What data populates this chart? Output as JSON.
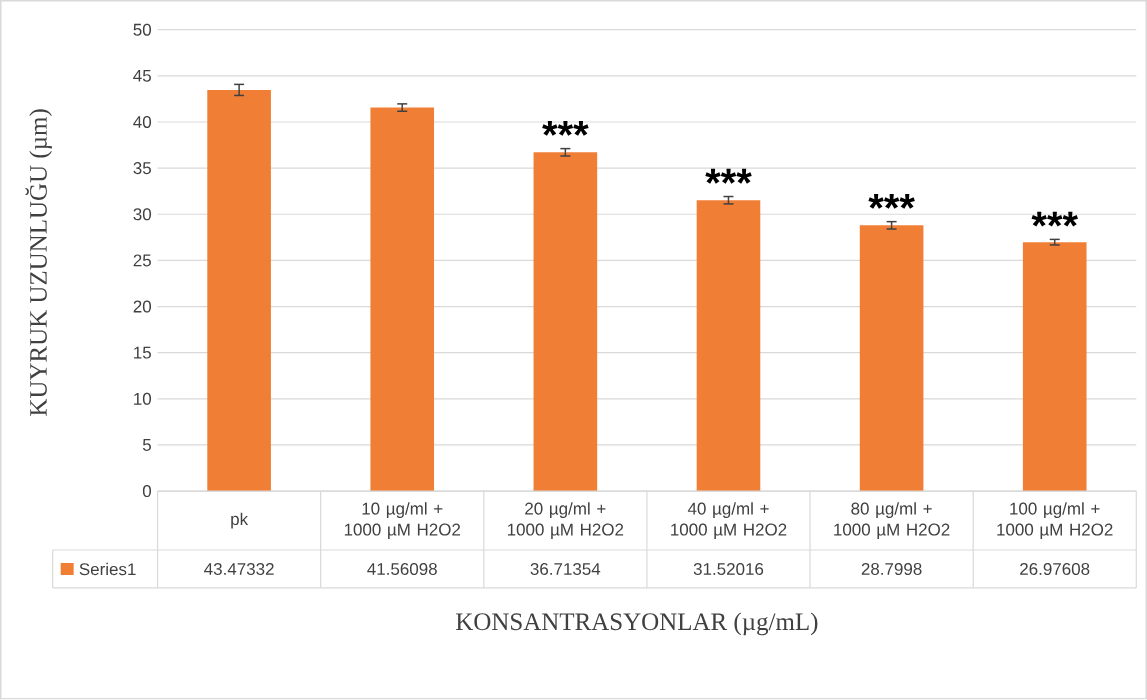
{
  "chart_data": {
    "type": "bar",
    "xlabel": "KONSANTRASYONLAR (µg/mL)",
    "ylabel": "KUYRUK UZUNLUĞU (µm)",
    "categories": [
      "pk",
      "10 µg/ml + 1000 µM H2O2",
      "20 µg/ml + 1000 µM H2O2",
      "40 µg/ml + 1000 µM H2O2",
      "80 µg/ml + 1000 µM H2O2",
      "100 µg/ml + 1000 µM H2O2"
    ],
    "series": [
      {
        "name": "Series1",
        "color": "#f07f35",
        "values": [
          43.47332,
          41.56098,
          36.71354,
          31.52016,
          28.7998,
          26.97608
        ],
        "errors": [
          0.6,
          0.4,
          0.4,
          0.4,
          0.4,
          0.3
        ],
        "value_labels": [
          "43.47332",
          "41.56098",
          "36.71354",
          "31.52016",
          "28.7998",
          "26.97608"
        ]
      }
    ],
    "ylim": [
      0,
      50
    ],
    "yticks": [
      0,
      5,
      10,
      15,
      20,
      25,
      30,
      35,
      40,
      45,
      50
    ],
    "grid": "y",
    "legend": "bottom left",
    "annotations": [
      "***",
      "***",
      "***",
      "***"
    ]
  }
}
